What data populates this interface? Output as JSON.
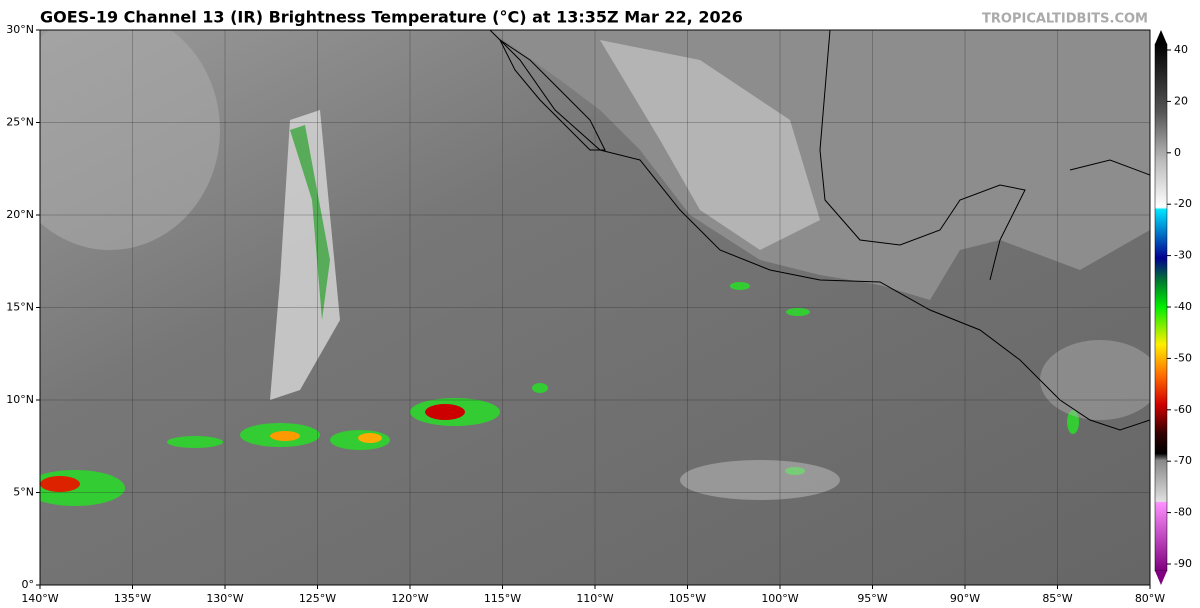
{
  "map": {
    "title": "GOES-19 Channel 13 (IR) Brightness Temperature (°C) at 13:35Z Mar 22, 2026",
    "credit": "TROPICALTIDBITS.COM",
    "lat_range": [
      0,
      30
    ],
    "lon_range": [
      -140,
      -80
    ],
    "lat_ticks": [
      {
        "value": 0,
        "label": "0°"
      },
      {
        "value": 5,
        "label": "5°N"
      },
      {
        "value": 10,
        "label": "10°N"
      },
      {
        "value": 15,
        "label": "15°N"
      },
      {
        "value": 20,
        "label": "20°N"
      },
      {
        "value": 25,
        "label": "25°N"
      },
      {
        "value": 30,
        "label": "30°N"
      }
    ],
    "lon_ticks": [
      {
        "value": -140,
        "label": "140°W"
      },
      {
        "value": -135,
        "label": "135°W"
      },
      {
        "value": -130,
        "label": "130°W"
      },
      {
        "value": -125,
        "label": "125°W"
      },
      {
        "value": -120,
        "label": "120°W"
      },
      {
        "value": -115,
        "label": "115°W"
      },
      {
        "value": -110,
        "label": "110°W"
      },
      {
        "value": -105,
        "label": "105°W"
      },
      {
        "value": -100,
        "label": "100°W"
      },
      {
        "value": -95,
        "label": "95°W"
      },
      {
        "value": -90,
        "label": "90°W"
      },
      {
        "value": -85,
        "label": "85°W"
      },
      {
        "value": -80,
        "label": "80°W"
      }
    ],
    "colorbar_ticks": [
      40,
      20,
      0,
      -20,
      -30,
      -40,
      -50,
      -60,
      -70,
      -80,
      -90
    ]
  }
}
